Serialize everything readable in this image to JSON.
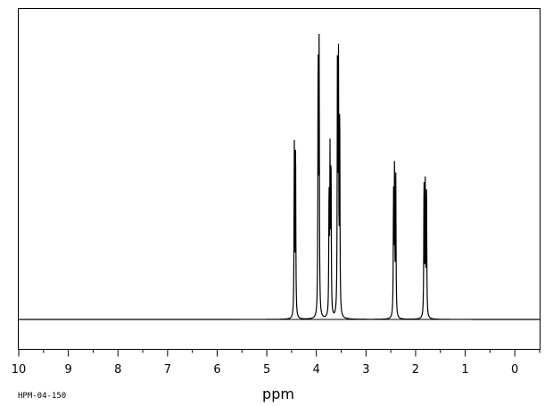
{
  "chart_data": {
    "type": "line",
    "title": "",
    "xlabel": "ppm",
    "ylabel": "",
    "xlim": [
      10.0,
      -0.5
    ],
    "x_reversed": true,
    "ylim": [
      0,
      1.0
    ],
    "x_ticks": [
      "10",
      "9",
      "8",
      "7",
      "6",
      "5",
      "4",
      "3",
      "2",
      "1",
      "0"
    ],
    "grid": false,
    "legend": "none",
    "line_color": "#000000",
    "peaks": [
      {
        "ppm": 4.445,
        "height": 0.6
      },
      {
        "ppm": 4.42,
        "height": 0.61
      },
      {
        "ppm": 3.965,
        "height": 0.89
      },
      {
        "ppm": 3.945,
        "height": 0.99
      },
      {
        "ppm": 3.745,
        "height": 0.43
      },
      {
        "ppm": 3.725,
        "height": 0.55
      },
      {
        "ppm": 3.705,
        "height": 0.53
      },
      {
        "ppm": 3.575,
        "height": 0.93
      },
      {
        "ppm": 3.555,
        "height": 0.86
      },
      {
        "ppm": 3.53,
        "height": 0.71
      },
      {
        "ppm": 2.445,
        "height": 0.42
      },
      {
        "ppm": 2.425,
        "height": 0.51
      },
      {
        "ppm": 2.4,
        "height": 0.49
      },
      {
        "ppm": 1.83,
        "height": 0.48
      },
      {
        "ppm": 1.805,
        "height": 0.46
      },
      {
        "ppm": 1.78,
        "height": 0.44
      }
    ]
  },
  "footer": {
    "code": "HPM-04-150"
  }
}
